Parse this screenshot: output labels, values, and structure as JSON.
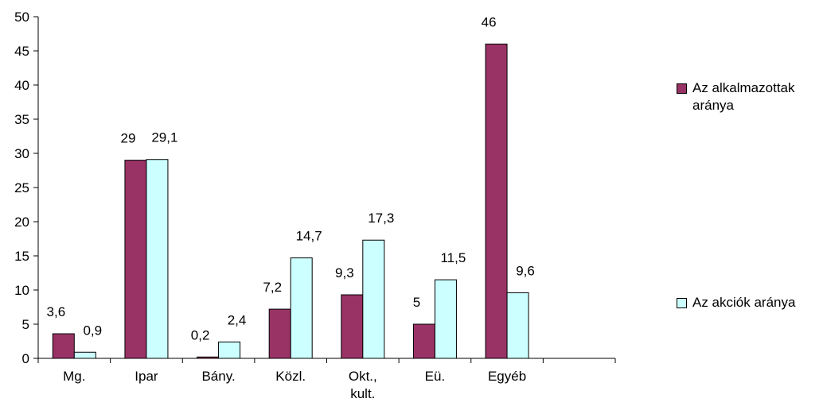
{
  "chart_data": {
    "type": "bar",
    "categories": [
      "Mg.",
      "Ipar",
      "Bány.",
      "Közl.",
      "Okt., kult.",
      "Eü.",
      "Egyéb",
      ""
    ],
    "category_lines": [
      [
        "Mg."
      ],
      [
        "Ipar"
      ],
      [
        "Bány."
      ],
      [
        "Közl."
      ],
      [
        "Okt.,",
        "kult."
      ],
      [
        "Eü."
      ],
      [
        "Egyéb"
      ],
      []
    ],
    "series": [
      {
        "name": "Az alkalmazottak aránya",
        "values": [
          3.6,
          29,
          0.2,
          7.2,
          9.3,
          5,
          46,
          null
        ],
        "labels": [
          "3,6",
          "29",
          "0,2",
          "7,2",
          "9,3",
          "5",
          "46",
          ""
        ],
        "color": "#993366"
      },
      {
        "name": "Az akciók aránya",
        "values": [
          0.9,
          29.1,
          2.4,
          14.7,
          17.3,
          11.5,
          9.6,
          null
        ],
        "labels": [
          "0,9",
          "29,1",
          "2,4",
          "14,7",
          "17,3",
          "11,5",
          "9,6",
          ""
        ],
        "color": "#ccffff"
      }
    ],
    "ylim": [
      0,
      50
    ],
    "yticks": [
      0,
      5,
      10,
      15,
      20,
      25,
      30,
      35,
      40,
      45,
      50
    ],
    "title": "",
    "xlabel": "",
    "ylabel": "",
    "grid": false,
    "legend_position": "right"
  },
  "legend": {
    "items": [
      {
        "label": "Az alkalmazottak aránya",
        "color": "#993366"
      },
      {
        "label": "Az akciók aránya",
        "color": "#ccffff"
      }
    ]
  }
}
